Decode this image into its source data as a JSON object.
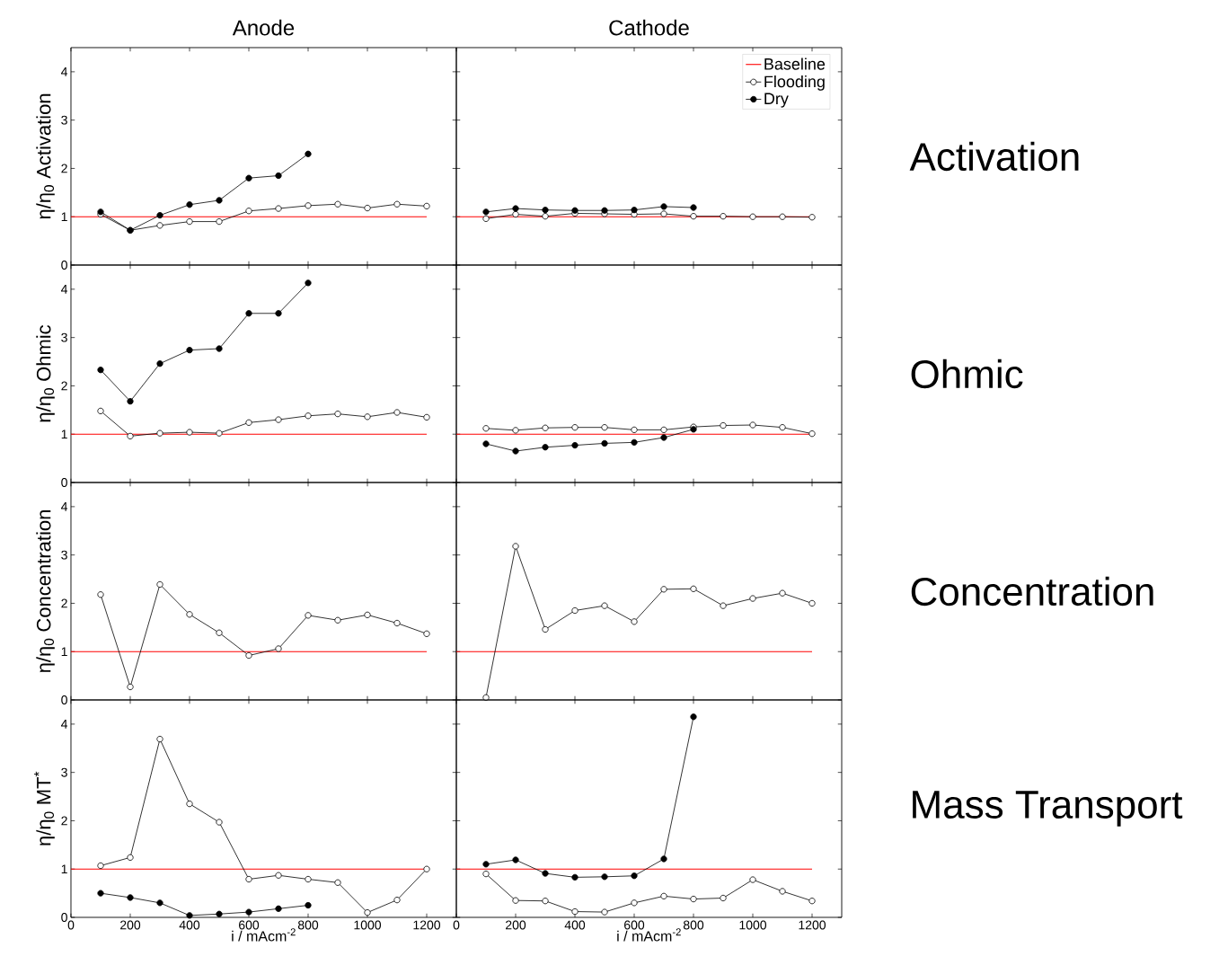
{
  "chart_data": [
    {
      "type": "line",
      "title": "Anode",
      "ylabel": "η/η$_{0}$  Activation",
      "xlim": [
        0,
        1300
      ],
      "ylim": [
        0,
        4.5
      ],
      "xticks": [
        0,
        200,
        400,
        600,
        800,
        1000,
        1200
      ],
      "yticks": [
        0,
        1,
        2,
        3,
        4
      ],
      "tick_labels": "y",
      "series": [
        {
          "color": "#ff0000",
          "x": [
            0,
            1200
          ],
          "values": [
            1,
            1
          ]
        },
        {
          "color": "#ffffff",
          "marker": "circle",
          "x": [
            100,
            200,
            300,
            400,
            500,
            600,
            700,
            800,
            900,
            1000,
            1100,
            1200
          ],
          "values": [
            1.05,
            0.72,
            0.82,
            0.9,
            0.9,
            1.12,
            1.17,
            1.23,
            1.26,
            1.18,
            1.26,
            1.22
          ]
        },
        {
          "color": "#000000",
          "marker": "circle",
          "x": [
            100,
            200,
            300,
            400,
            500,
            600,
            700,
            800
          ],
          "values": [
            1.1,
            0.72,
            1.03,
            1.25,
            1.34,
            1.8,
            1.85,
            2.3
          ]
        }
      ]
    },
    {
      "type": "line",
      "title": "Cathode",
      "y2label": "Activation",
      "legend": "top right",
      "xlim": [
        0,
        1300
      ],
      "ylim": [
        0,
        4.5
      ],
      "xticks": [
        0,
        200,
        400,
        600,
        800,
        1000,
        1200
      ],
      "yticks": [
        0,
        1,
        2,
        3,
        4
      ],
      "tick_labels": false,
      "series": [
        {
          "name": "Baseline",
          "color": "#ff0000",
          "x": [
            0,
            1200
          ],
          "values": [
            1,
            1
          ]
        },
        {
          "name": "Flooding",
          "color": "#ffffff",
          "marker": "circle",
          "x": [
            100,
            200,
            300,
            400,
            500,
            600,
            700,
            800,
            900,
            1000,
            1100,
            1200
          ],
          "values": [
            0.96,
            1.05,
            1.01,
            1.07,
            1.06,
            1.05,
            1.06,
            1.01,
            1.01,
            1.0,
            1.0,
            0.99
          ]
        },
        {
          "name": "Dry",
          "color": "#000000",
          "marker": "circle",
          "x": [
            100,
            200,
            300,
            400,
            500,
            600,
            700,
            800
          ],
          "values": [
            1.1,
            1.17,
            1.14,
            1.13,
            1.13,
            1.14,
            1.21,
            1.19
          ]
        }
      ]
    },
    {
      "type": "line",
      "ylabel": "η/η$_{0}$  Ohmic",
      "xlim": [
        0,
        1300
      ],
      "ylim": [
        0,
        4.5
      ],
      "xticks": [
        0,
        200,
        400,
        600,
        800,
        1000,
        1200
      ],
      "yticks": [
        0,
        1,
        2,
        3,
        4
      ],
      "tick_labels": "y",
      "series": [
        {
          "color": "#ff0000",
          "x": [
            0,
            1200
          ],
          "values": [
            1,
            1
          ]
        },
        {
          "color": "#ffffff",
          "marker": "circle",
          "x": [
            100,
            200,
            300,
            400,
            500,
            600,
            700,
            800,
            900,
            1000,
            1100,
            1200
          ],
          "values": [
            1.48,
            0.96,
            1.02,
            1.04,
            1.02,
            1.24,
            1.3,
            1.38,
            1.42,
            1.36,
            1.45,
            1.35
          ]
        },
        {
          "color": "#000000",
          "marker": "circle",
          "x": [
            100,
            200,
            300,
            400,
            500,
            600,
            700,
            800
          ],
          "values": [
            2.33,
            1.68,
            2.46,
            2.74,
            2.77,
            3.5,
            3.5,
            4.13
          ]
        }
      ]
    },
    {
      "type": "line",
      "y2label": "Ohmic",
      "xlim": [
        0,
        1300
      ],
      "ylim": [
        0,
        4.5
      ],
      "xticks": [
        0,
        200,
        400,
        600,
        800,
        1000,
        1200
      ],
      "yticks": [
        0,
        1,
        2,
        3,
        4
      ],
      "tick_labels": false,
      "series": [
        {
          "color": "#ff0000",
          "x": [
            0,
            1200
          ],
          "values": [
            1,
            1
          ]
        },
        {
          "color": "#ffffff",
          "marker": "circle",
          "x": [
            100,
            200,
            300,
            400,
            500,
            600,
            700,
            800,
            900,
            1000,
            1100,
            1200
          ],
          "values": [
            1.12,
            1.08,
            1.13,
            1.14,
            1.14,
            1.09,
            1.09,
            1.15,
            1.18,
            1.19,
            1.14,
            1.01
          ]
        },
        {
          "color": "#000000",
          "marker": "circle",
          "x": [
            100,
            200,
            300,
            400,
            500,
            600,
            700,
            800
          ],
          "values": [
            0.8,
            0.65,
            0.73,
            0.77,
            0.81,
            0.83,
            0.93,
            1.1
          ]
        }
      ]
    },
    {
      "type": "line",
      "ylabel": "η/η$_{0}$  Concentration",
      "xlim": [
        0,
        1300
      ],
      "ylim": [
        0,
        4.5
      ],
      "xticks": [
        0,
        200,
        400,
        600,
        800,
        1000,
        1200
      ],
      "yticks": [
        0,
        1,
        2,
        3,
        4
      ],
      "tick_labels": "y",
      "series": [
        {
          "color": "#ff0000",
          "x": [
            0,
            1200
          ],
          "values": [
            1,
            1
          ]
        },
        {
          "color": "#ffffff",
          "marker": "circle",
          "x": [
            100,
            200,
            300,
            400,
            500,
            600,
            700,
            800,
            900,
            1000,
            1100,
            1200
          ],
          "values": [
            2.18,
            0.27,
            2.39,
            1.77,
            1.39,
            0.92,
            1.06,
            1.75,
            1.65,
            1.76,
            1.59,
            1.37
          ]
        }
      ]
    },
    {
      "type": "line",
      "y2label": "Concentration",
      "xlim": [
        0,
        1300
      ],
      "ylim": [
        0,
        4.5
      ],
      "xticks": [
        0,
        200,
        400,
        600,
        800,
        1000,
        1200
      ],
      "yticks": [
        0,
        1,
        2,
        3,
        4
      ],
      "tick_labels": false,
      "series": [
        {
          "color": "#ff0000",
          "x": [
            0,
            1200
          ],
          "values": [
            1,
            1
          ]
        },
        {
          "color": "#ffffff",
          "marker": "circle",
          "x": [
            100,
            200,
            300,
            400,
            500,
            600,
            700,
            800,
            900,
            1000,
            1100,
            1200
          ],
          "values": [
            0.05,
            3.18,
            1.46,
            1.85,
            1.95,
            1.62,
            2.29,
            2.3,
            1.95,
            2.1,
            2.21,
            2.0
          ]
        }
      ]
    },
    {
      "type": "line",
      "ylabel": "η/η$_{0}$  MT$^{*}$",
      "xlabel": "i / mAcm$^{-2}$",
      "xlim": [
        0,
        1300
      ],
      "ylim": [
        0,
        4.5
      ],
      "xticks": [
        0,
        200,
        400,
        600,
        800,
        1000,
        1200
      ],
      "yticks": [
        0,
        1,
        2,
        3,
        4
      ],
      "series": [
        {
          "color": "#ff0000",
          "x": [
            0,
            1200
          ],
          "values": [
            1,
            1
          ]
        },
        {
          "color": "#ffffff",
          "marker": "circle",
          "x": [
            100,
            200,
            300,
            400,
            500,
            600,
            700,
            800,
            900,
            1000,
            1100,
            1200
          ],
          "values": [
            1.07,
            1.24,
            3.69,
            2.35,
            1.97,
            0.79,
            0.87,
            0.79,
            0.72,
            0.1,
            0.36,
            1.0
          ]
        },
        {
          "color": "#000000",
          "marker": "circle",
          "x": [
            100,
            200,
            300,
            400,
            500,
            600,
            700,
            800
          ],
          "values": [
            0.5,
            0.41,
            0.3,
            0.04,
            0.07,
            0.11,
            0.18,
            0.25
          ]
        }
      ]
    },
    {
      "type": "line",
      "xlabel": "i / mAcm$^{-2}$",
      "y2label": "Mass Transport",
      "xlim": [
        0,
        1300
      ],
      "ylim": [
        0,
        4.5
      ],
      "xticks": [
        0,
        200,
        400,
        600,
        800,
        1000,
        1200
      ],
      "yticks": [
        0,
        1,
        2,
        3,
        4
      ],
      "tick_labels": "x",
      "series": [
        {
          "color": "#ff0000",
          "x": [
            0,
            1200
          ],
          "values": [
            1,
            1
          ]
        },
        {
          "color": "#ffffff",
          "marker": "circle",
          "x": [
            100,
            200,
            300,
            400,
            500,
            600,
            700,
            800,
            900,
            1000,
            1100,
            1200
          ],
          "values": [
            0.9,
            0.35,
            0.34,
            0.12,
            0.11,
            0.3,
            0.44,
            0.38,
            0.4,
            0.78,
            0.54,
            0.34
          ]
        },
        {
          "color": "#000000",
          "marker": "circle",
          "x": [
            100,
            200,
            300,
            400,
            500,
            600,
            700,
            800
          ],
          "values": [
            1.1,
            1.19,
            0.91,
            0.83,
            0.84,
            0.86,
            1.21,
            4.15
          ]
        }
      ]
    }
  ]
}
